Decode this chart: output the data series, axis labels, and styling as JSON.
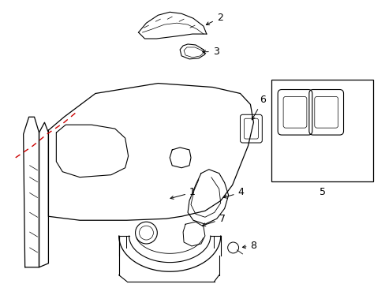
{
  "bg_color": "#ffffff",
  "line_color": "#000000",
  "dashed_color": "#cc0000",
  "label_color": "#000000",
  "fig_width": 4.89,
  "fig_height": 3.6,
  "dpi": 100
}
